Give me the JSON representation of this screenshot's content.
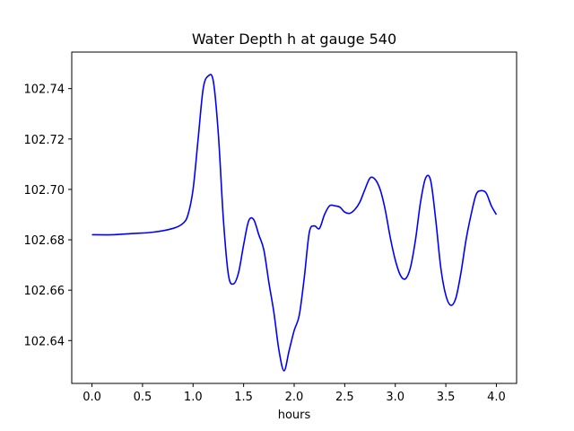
{
  "chart_data": {
    "type": "line",
    "title": "Water Depth h at gauge 540",
    "xlabel": "hours",
    "ylabel": "",
    "xlim": [
      -0.2,
      4.2
    ],
    "ylim": [
      102.623,
      102.7545
    ],
    "xticks": [
      0.0,
      0.5,
      1.0,
      1.5,
      2.0,
      2.5,
      3.0,
      3.5,
      4.0
    ],
    "xtick_labels": [
      "0.0",
      "0.5",
      "1.0",
      "1.5",
      "2.0",
      "2.5",
      "3.0",
      "3.5",
      "4.0"
    ],
    "yticks": [
      102.64,
      102.66,
      102.68,
      102.7,
      102.72,
      102.74
    ],
    "ytick_labels": [
      "102.64",
      "102.66",
      "102.68",
      "102.70",
      "102.72",
      "102.74"
    ],
    "grid": false,
    "series": [
      {
        "color": "#0000ff",
        "x": [
          0.0,
          0.2,
          0.4,
          0.6,
          0.8,
          0.9,
          0.95,
          1.0,
          1.05,
          1.1,
          1.15,
          1.2,
          1.25,
          1.3,
          1.35,
          1.4,
          1.45,
          1.5,
          1.55,
          1.6,
          1.65,
          1.7,
          1.75,
          1.8,
          1.85,
          1.9,
          1.95,
          2.0,
          2.05,
          2.1,
          2.15,
          2.2,
          2.25,
          2.3,
          2.35,
          2.4,
          2.45,
          2.5,
          2.55,
          2.6,
          2.65,
          2.7,
          2.75,
          2.8,
          2.85,
          2.9,
          2.95,
          3.0,
          3.05,
          3.1,
          3.15,
          3.2,
          3.25,
          3.3,
          3.35,
          3.4,
          3.45,
          3.5,
          3.55,
          3.6,
          3.65,
          3.7,
          3.75,
          3.8,
          3.85,
          3.9,
          3.95,
          4.0
        ],
        "y": [
          102.682,
          102.682,
          102.6825,
          102.683,
          102.6845,
          102.6865,
          102.69,
          102.7,
          102.72,
          102.74,
          102.745,
          102.743,
          102.722,
          102.688,
          102.666,
          102.6625,
          102.667,
          102.678,
          102.6875,
          102.688,
          102.682,
          102.676,
          102.663,
          102.651,
          102.636,
          102.628,
          102.636,
          102.644,
          102.65,
          102.665,
          102.683,
          102.6855,
          102.6845,
          102.69,
          102.6935,
          102.6935,
          102.693,
          102.691,
          102.6905,
          102.692,
          102.695,
          102.7,
          102.7045,
          102.704,
          102.7,
          102.692,
          102.681,
          102.672,
          102.666,
          102.6645,
          102.669,
          102.68,
          102.695,
          102.7045,
          102.7035,
          102.688,
          102.669,
          102.658,
          102.654,
          102.657,
          102.667,
          102.68,
          102.69,
          102.698,
          102.6995,
          102.6985,
          102.6935,
          102.69
        ]
      }
    ]
  }
}
